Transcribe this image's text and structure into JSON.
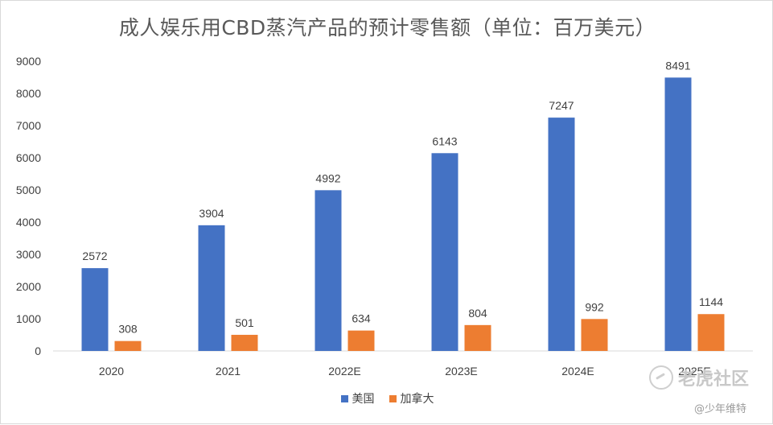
{
  "chart_data": {
    "type": "bar",
    "title": "成人娱乐用CBD蒸汽产品的预计零售额（单位：百万美元）",
    "categories": [
      "2020",
      "2021",
      "2022E",
      "2023E",
      "2024E",
      "2025E"
    ],
    "series": [
      {
        "name": "美国",
        "color": "#4472C4",
        "values": [
          2572,
          3904,
          4992,
          6143,
          7247,
          8491
        ]
      },
      {
        "name": "加拿大",
        "color": "#ED7D31",
        "values": [
          308,
          501,
          634,
          804,
          992,
          1144
        ]
      }
    ],
    "ylim": [
      0,
      9000
    ],
    "yticks": [
      0,
      1000,
      2000,
      3000,
      4000,
      5000,
      6000,
      7000,
      8000,
      9000
    ],
    "xlabel": "",
    "ylabel": "",
    "legend": "bottom-center",
    "grid": false
  },
  "watermark": {
    "brand": "老虎社区",
    "handle": "@少年维特"
  }
}
